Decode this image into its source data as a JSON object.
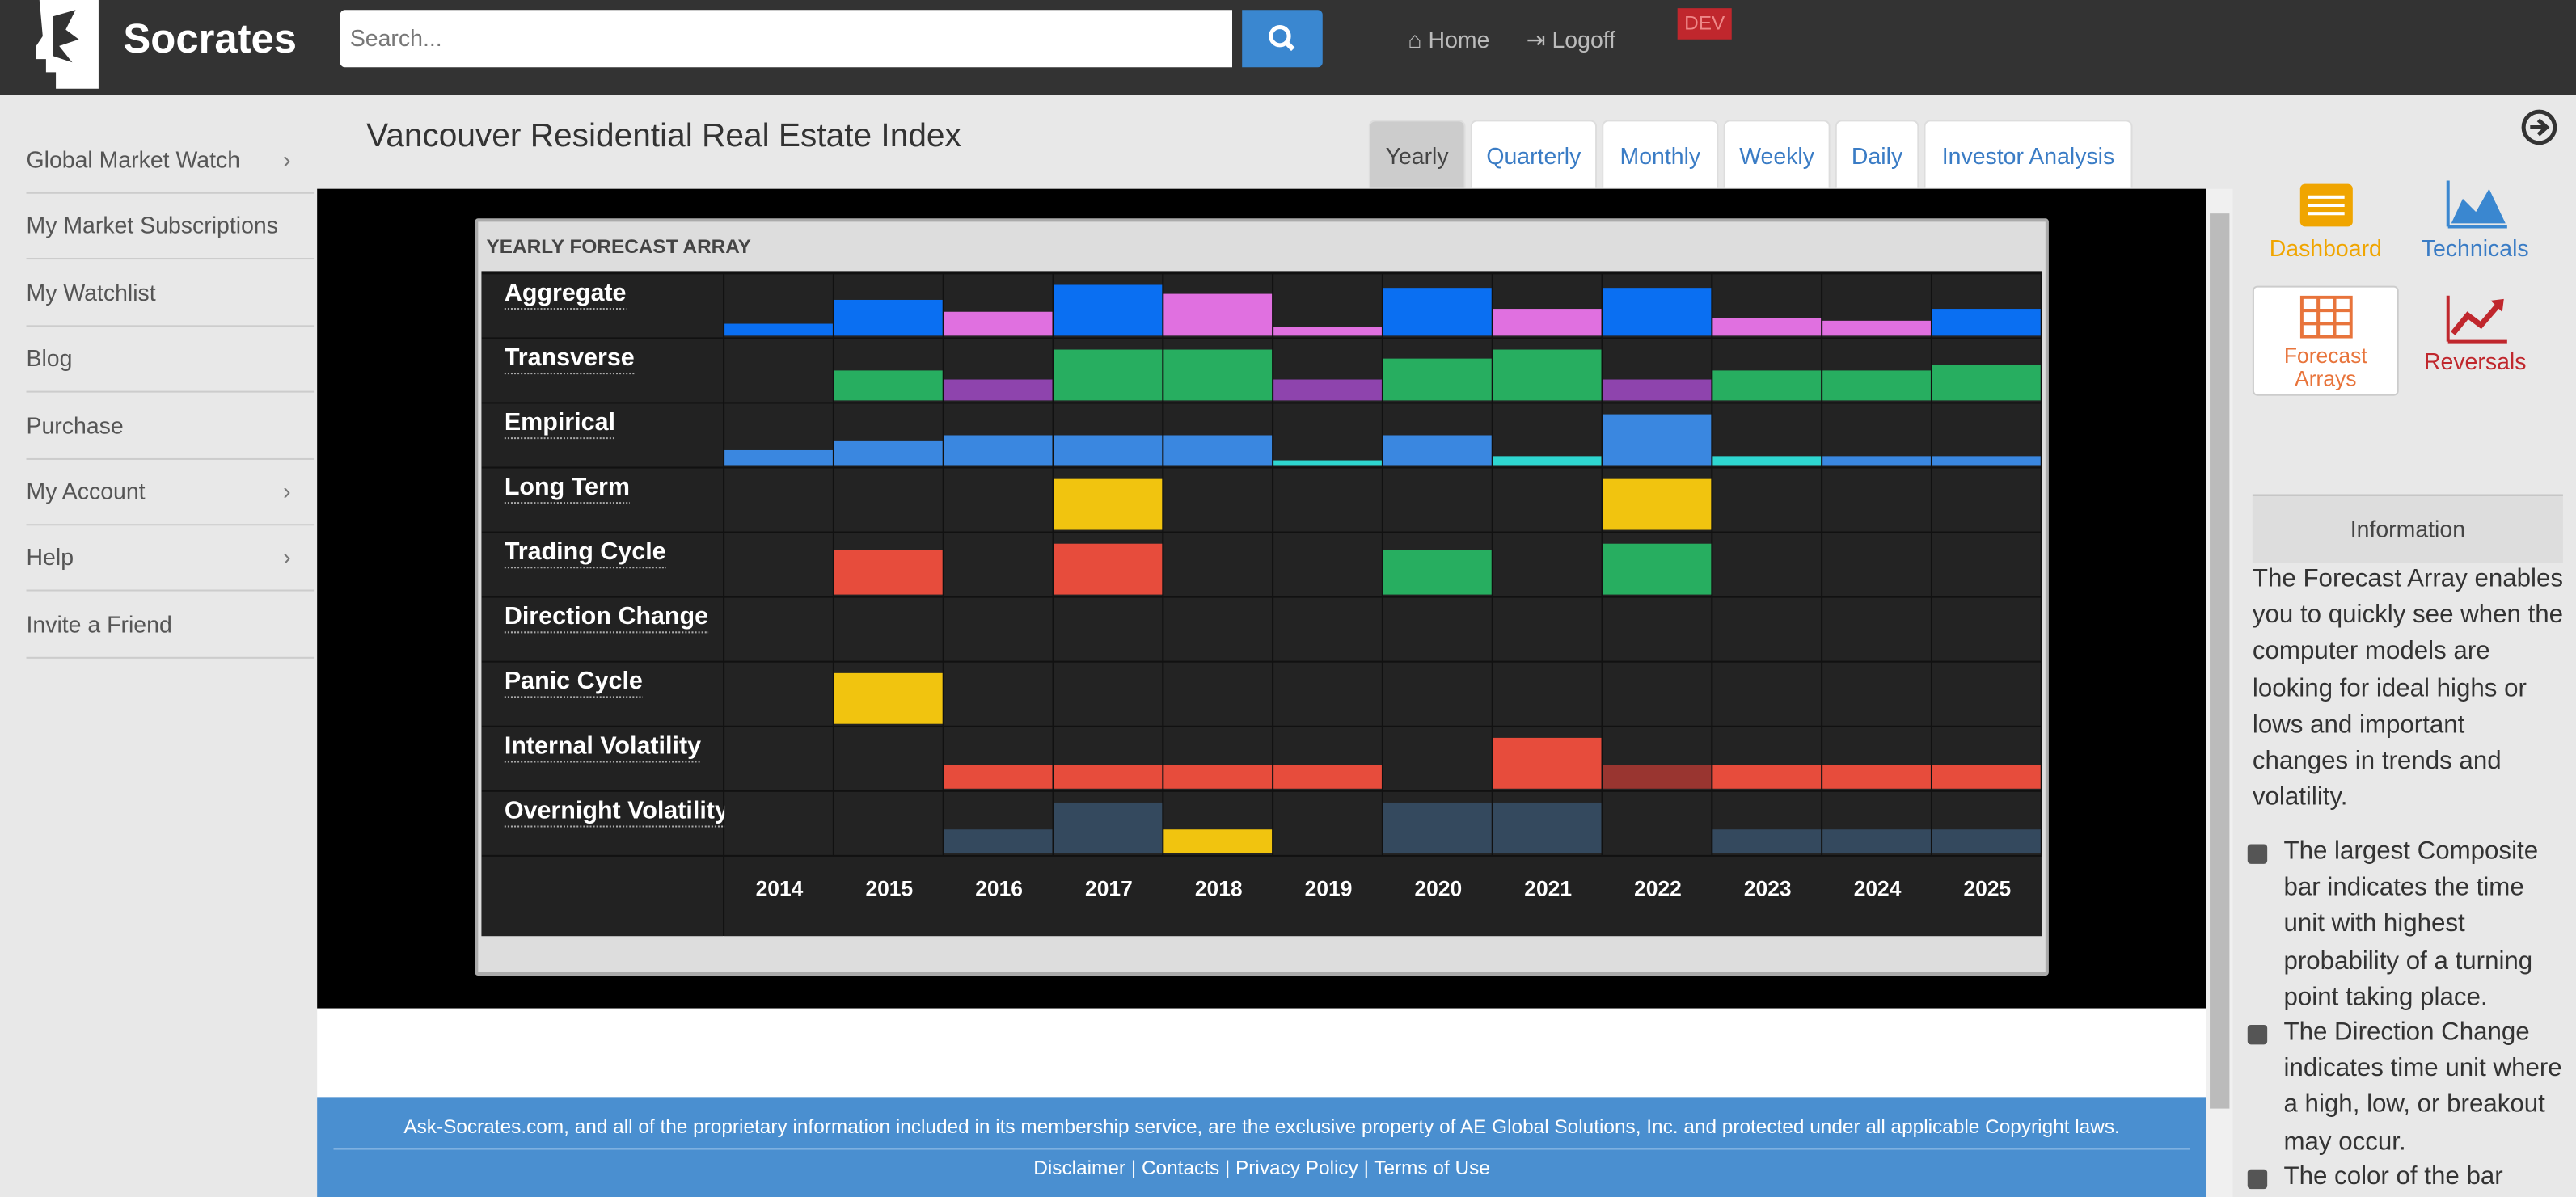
{
  "header": {
    "brand": "Socrates",
    "search_placeholder": "Search...",
    "nav": [
      "Home",
      "Logoff"
    ],
    "badge": "DEV"
  },
  "sidebar": [
    {
      "label": "Global Market Watch",
      "submenu": true
    },
    {
      "label": "My Market Subscriptions",
      "submenu": false
    },
    {
      "label": "My Watchlist",
      "submenu": false
    },
    {
      "label": "Blog",
      "submenu": false
    },
    {
      "label": "Purchase",
      "submenu": false
    },
    {
      "label": "My Account",
      "submenu": true
    },
    {
      "label": "Help",
      "submenu": true
    },
    {
      "label": "Invite a Friend",
      "submenu": false
    }
  ],
  "page": {
    "title": "Vancouver Residential Real Estate Index",
    "tabs": [
      "Yearly",
      "Quarterly",
      "Monthly",
      "Weekly",
      "Daily",
      "Investor Analysis"
    ],
    "active_tab": "Yearly"
  },
  "forecast_array": {
    "title": "YEARLY FORECAST ARRAY",
    "years": [
      "2014",
      "2015",
      "2016",
      "2017",
      "2018",
      "2019",
      "2020",
      "2021",
      "2022",
      "2023",
      "2024",
      "2025"
    ],
    "rows": [
      {
        "label": "Aggregate",
        "values": [
          0.2,
          0.6,
          0.4,
          0.85,
          0.7,
          0.15,
          0.8,
          0.45,
          0.8,
          0.3,
          0.25,
          0.45
        ],
        "colors": [
          "#0a6ff2",
          "#0a6ff2",
          "#e070e0",
          "#0a6ff2",
          "#e070e0",
          "#e070e0",
          "#0a6ff2",
          "#e070e0",
          "#0a6ff2",
          "#e070e0",
          "#e070e0",
          "#0a6ff2"
        ]
      },
      {
        "label": "Transverse",
        "values": [
          null,
          0.5,
          0.35,
          0.85,
          0.85,
          0.35,
          0.7,
          0.85,
          0.35,
          0.5,
          0.5,
          0.6
        ],
        "colors": [
          null,
          "#27ae60",
          "#8e44ad",
          "#27ae60",
          "#27ae60",
          "#8e44ad",
          "#27ae60",
          "#27ae60",
          "#8e44ad",
          "#27ae60",
          "#27ae60",
          "#27ae60"
        ]
      },
      {
        "label": "Empirical",
        "values": [
          0.25,
          0.4,
          0.5,
          0.5,
          0.5,
          0.08,
          0.5,
          0.15,
          0.85,
          0.15,
          0.15,
          0.15
        ],
        "colors": [
          "#3a87e0",
          "#3a87e0",
          "#3a87e0",
          "#3a87e0",
          "#3a87e0",
          "#2ed6d0",
          "#3a87e0",
          "#2ed6d0",
          "#3a87e0",
          "#2ed6d0",
          "#3a87e0",
          "#3a87e0"
        ]
      },
      {
        "label": "Long Term",
        "values": [
          null,
          null,
          null,
          0.85,
          null,
          null,
          null,
          null,
          0.85,
          null,
          null,
          null
        ],
        "colors": [
          null,
          null,
          null,
          "#f1c40f",
          null,
          null,
          null,
          null,
          "#f1c40f",
          null,
          null,
          null
        ]
      },
      {
        "label": "Trading Cycle",
        "values": [
          null,
          0.75,
          null,
          0.85,
          null,
          null,
          0.75,
          null,
          0.85,
          null,
          null,
          null
        ],
        "colors": [
          null,
          "#e74c3c",
          null,
          "#e74c3c",
          null,
          null,
          "#27ae60",
          null,
          "#27ae60",
          null,
          null,
          null
        ]
      },
      {
        "label": "Direction Change",
        "values": [
          null,
          null,
          null,
          null,
          null,
          null,
          null,
          null,
          null,
          null,
          null,
          null
        ],
        "colors": [
          null,
          null,
          null,
          null,
          null,
          null,
          null,
          null,
          null,
          null,
          null,
          null
        ]
      },
      {
        "label": "Panic Cycle",
        "values": [
          null,
          0.85,
          null,
          null,
          null,
          null,
          null,
          null,
          null,
          null,
          null,
          null
        ],
        "colors": [
          null,
          "#f1c40f",
          null,
          null,
          null,
          null,
          null,
          null,
          null,
          null,
          null,
          null
        ]
      },
      {
        "label": "Internal Volatility",
        "values": [
          null,
          null,
          0.4,
          0.4,
          0.4,
          0.4,
          null,
          0.85,
          0.4,
          0.4,
          0.4,
          0.4
        ],
        "colors": [
          null,
          null,
          "#e74c3c",
          "#e74c3c",
          "#e74c3c",
          "#e74c3c",
          null,
          "#e74c3c",
          "#993530",
          "#e74c3c",
          "#e74c3c",
          "#e74c3c"
        ]
      },
      {
        "label": "Overnight Volatility",
        "values": [
          null,
          null,
          0.4,
          0.85,
          0.4,
          null,
          0.85,
          0.85,
          null,
          0.4,
          0.4,
          0.4
        ],
        "colors": [
          null,
          null,
          "#34495e",
          "#34495e",
          "#f1c40f",
          null,
          "#34495e",
          "#34495e",
          null,
          "#34495e",
          "#34495e",
          "#34495e"
        ]
      }
    ]
  },
  "footer": {
    "text": "Ask-Socrates.com, and all of the proprietary information included in its membership service, are the exclusive property of AE Global Solutions, Inc. and protected under all applicable Copyright laws.",
    "links": "Disclaimer | Contacts | Privacy Policy | Terms of Use"
  },
  "right_panel": {
    "tools": [
      "Dashboard",
      "Technicals",
      "Forecast Arrays",
      "Reversals"
    ],
    "active_tool": "Forecast Arrays",
    "info_title": "Information",
    "info_text": "The Forecast Array enables you to quickly see when the computer models are looking for ideal highs or lows and important changes in trends and volatility.",
    "bullets": [
      "The largest Composite bar indicates the time unit with highest probability of a turning point taking place.",
      "The Direction Change indicates time unit where a high, low, or breakout may occur.",
      "The color of the bar"
    ]
  }
}
